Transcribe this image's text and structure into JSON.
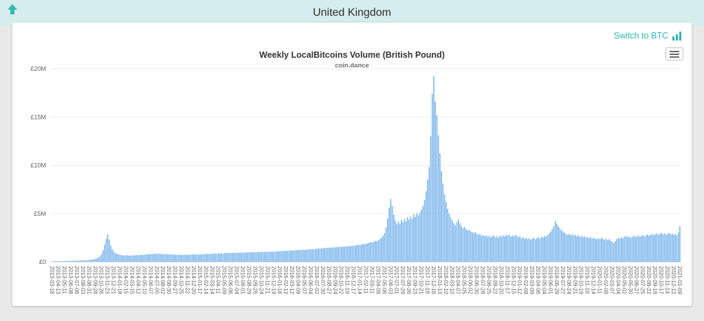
{
  "header": {
    "title": "United Kingdom",
    "bar_color": "#d5edec"
  },
  "toolbar": {
    "switch_link_label": "Switch to BTC",
    "accent_color": "#2fb5ae"
  },
  "chart_data": {
    "type": "bar",
    "title": "Weekly LocalBitcoins Volume (British Pound)",
    "subtitle": "coin.dance",
    "xlabel": "",
    "ylabel": "",
    "ylim": [
      0,
      20000000
    ],
    "yticks": [
      "£0",
      "£5M",
      "£10M",
      "£15M",
      "£20M"
    ],
    "grid": "faint",
    "legend": "none",
    "x_label_rotation": 90,
    "bar_color": "#7cb5ec",
    "label_every": 4,
    "values_unit": "million GBP per week",
    "categories": [
      "2013-03-16",
      "2013-04-13",
      "2013-05-11",
      "2013-06-08",
      "2013-07-06",
      "2013-08-03",
      "2013-08-31",
      "2013-09-28",
      "2013-10-26",
      "2013-11-23",
      "2013-12-21",
      "2014-01-18",
      "2014-02-15",
      "2014-03-15",
      "2014-04-12",
      "2014-05-10",
      "2014-06-07",
      "2014-07-05",
      "2014-08-02",
      "2014-08-30",
      "2014-09-27",
      "2014-10-25",
      "2014-11-22",
      "2014-12-20",
      "2015-01-17",
      "2015-02-14",
      "2015-03-14",
      "2015-04-11",
      "2015-05-09",
      "2015-06-06",
      "2015-07-04",
      "2015-08-01",
      "2015-08-29",
      "2015-09-26",
      "2015-10-24",
      "2015-11-21",
      "2015-12-19",
      "2016-01-16",
      "2016-02-13",
      "2016-03-12",
      "2016-04-09",
      "2016-05-07",
      "2016-06-04",
      "2016-07-02",
      "2016-07-30",
      "2016-08-27",
      "2016-09-24",
      "2016-10-22",
      "2016-11-19",
      "2016-12-17",
      "2017-01-14",
      "2017-02-11",
      "2017-03-11",
      "2017-04-08",
      "2017-05-06",
      "2017-06-03",
      "2017-07-01",
      "2017-07-29",
      "2017-08-26",
      "2017-09-23",
      "2017-10-21",
      "2017-11-18",
      "2017-12-16",
      "2018-01-13",
      "2018-02-10",
      "2018-03-10",
      "2018-04-07",
      "2018-05-05",
      "2018-06-02",
      "2018-06-30",
      "2018-07-28",
      "2018-08-25",
      "2018-09-22",
      "2018-10-20",
      "2018-11-17",
      "2018-12-15",
      "2019-01-12",
      "2019-02-09",
      "2019-03-09",
      "2019-04-06",
      "2019-05-04",
      "2019-06-01",
      "2019-06-29",
      "2019-07-27",
      "2019-08-24",
      "2019-09-21",
      "2019-10-19",
      "2019-11-16",
      "2019-12-14",
      "2020-01-11",
      "2020-02-08",
      "2020-03-07",
      "2020-04-04",
      "2020-05-02",
      "2020-05-30",
      "2020-06-27",
      "2020-07-25",
      "2020-08-22",
      "2020-09-19",
      "2020-10-17",
      "2020-11-14",
      "2020-12-12",
      "2021-01-09"
    ],
    "series": [
      {
        "name": "Weekly LocalBitcoins Volume",
        "values": [
          0.04,
          0.05,
          0.05,
          0.06,
          0.06,
          0.07,
          0.07,
          0.08,
          0.08,
          0.09,
          0.09,
          0.1,
          0.1,
          0.11,
          0.12,
          0.11,
          0.13,
          0.14,
          0.13,
          0.15,
          0.16,
          0.15,
          0.17,
          0.18,
          0.2,
          0.22,
          0.25,
          0.28,
          0.32,
          0.38,
          0.45,
          0.6,
          0.8,
          1.2,
          1.8,
          2.4,
          2.85,
          2.3,
          1.7,
          1.3,
          1.05,
          0.9,
          0.82,
          0.78,
          0.74,
          0.7,
          0.68,
          0.66,
          0.69,
          0.67,
          0.64,
          0.66,
          0.68,
          0.65,
          0.7,
          0.72,
          0.69,
          0.73,
          0.75,
          0.72,
          0.76,
          0.79,
          0.77,
          0.81,
          0.83,
          0.8,
          0.84,
          0.86,
          0.83,
          0.87,
          0.85,
          0.81,
          0.79,
          0.83,
          0.81,
          0.78,
          0.76,
          0.79,
          0.77,
          0.74,
          0.76,
          0.73,
          0.75,
          0.72,
          0.74,
          0.71,
          0.73,
          0.75,
          0.72,
          0.76,
          0.74,
          0.77,
          0.79,
          0.76,
          0.78,
          0.75,
          0.79,
          0.77,
          0.81,
          0.79,
          0.83,
          0.81,
          0.84,
          0.82,
          0.86,
          0.84,
          0.87,
          0.85,
          0.89,
          0.87,
          0.9,
          0.88,
          0.92,
          0.9,
          0.93,
          0.91,
          0.94,
          0.92,
          0.95,
          0.93,
          0.96,
          0.94,
          0.97,
          0.95,
          0.98,
          0.96,
          0.99,
          0.97,
          1.0,
          0.98,
          1.01,
          0.99,
          1.02,
          1.0,
          1.03,
          1.01,
          1.04,
          1.02,
          1.05,
          1.03,
          1.06,
          1.04,
          1.07,
          1.05,
          1.08,
          1.06,
          1.08,
          1.11,
          1.09,
          1.13,
          1.11,
          1.15,
          1.13,
          1.17,
          1.15,
          1.19,
          1.17,
          1.21,
          1.19,
          1.23,
          1.21,
          1.25,
          1.23,
          1.27,
          1.25,
          1.29,
          1.27,
          1.31,
          1.29,
          1.34,
          1.31,
          1.37,
          1.34,
          1.4,
          1.37,
          1.42,
          1.39,
          1.45,
          1.42,
          1.47,
          1.44,
          1.5,
          1.47,
          1.52,
          1.49,
          1.55,
          1.52,
          1.57,
          1.54,
          1.6,
          1.57,
          1.62,
          1.59,
          1.65,
          1.62,
          1.68,
          1.65,
          1.71,
          1.74,
          1.78,
          1.72,
          1.8,
          1.85,
          1.82,
          1.88,
          1.92,
          1.98,
          2.05,
          2.0,
          2.1,
          2.18,
          2.12,
          2.25,
          2.35,
          2.5,
          2.7,
          3.0,
          3.6,
          4.5,
          5.6,
          6.5,
          5.8,
          4.9,
          4.3,
          3.9,
          4.2,
          3.95,
          4.35,
          4.1,
          4.45,
          4.2,
          4.6,
          4.35,
          4.7,
          4.45,
          4.95,
          4.65,
          5.05,
          4.8,
          5.1,
          5.4,
          5.8,
          6.4,
          7.3,
          8.5,
          9.8,
          13.0,
          17.4,
          19.2,
          16.6,
          15.2,
          13.1,
          11.2,
          9.4,
          8.1,
          7.0,
          6.2,
          5.5,
          5.0,
          4.6,
          4.3,
          4.0,
          3.8,
          4.1,
          4.4,
          4.0,
          3.7,
          3.5,
          3.6,
          3.4,
          3.25,
          3.35,
          3.15,
          3.05,
          2.95,
          3.1,
          2.9,
          2.8,
          2.9,
          2.7,
          2.8,
          2.65,
          2.75,
          2.6,
          2.7,
          2.55,
          2.65,
          2.75,
          2.55,
          2.65,
          2.5,
          2.7,
          2.6,
          2.75,
          2.65,
          2.8,
          2.7,
          2.85,
          2.6,
          2.75,
          2.65,
          2.8,
          2.7,
          2.55,
          2.65,
          2.45,
          2.55,
          2.4,
          2.5,
          2.35,
          2.45,
          2.3,
          2.4,
          2.5,
          2.35,
          2.45,
          2.55,
          2.4,
          2.6,
          2.5,
          2.7,
          2.6,
          2.8,
          2.95,
          3.1,
          3.4,
          3.7,
          4.2,
          3.95,
          3.7,
          3.5,
          3.3,
          3.15,
          3.0,
          2.9,
          2.8,
          2.9,
          2.75,
          2.85,
          2.7,
          2.8,
          2.65,
          2.75,
          2.6,
          2.7,
          2.55,
          2.65,
          2.5,
          2.6,
          2.45,
          2.55,
          2.4,
          2.5,
          2.4,
          2.35,
          2.45,
          2.35,
          2.5,
          2.4,
          2.3,
          2.4,
          2.25,
          2.35,
          2.2,
          2.1,
          1.95,
          2.15,
          2.35,
          2.5,
          2.4,
          2.55,
          2.45,
          2.6,
          2.7,
          2.55,
          2.65,
          2.5,
          2.6,
          2.7,
          2.55,
          2.65,
          2.75,
          2.6,
          2.7,
          2.8,
          2.65,
          2.75,
          2.85,
          2.7,
          2.8,
          2.9,
          2.75,
          2.85,
          2.95,
          2.8,
          2.9,
          3.0,
          2.85,
          2.95,
          2.8,
          2.9,
          3.0,
          2.85,
          2.95,
          2.8,
          2.9,
          2.75,
          3.05,
          3.7
        ]
      }
    ]
  }
}
